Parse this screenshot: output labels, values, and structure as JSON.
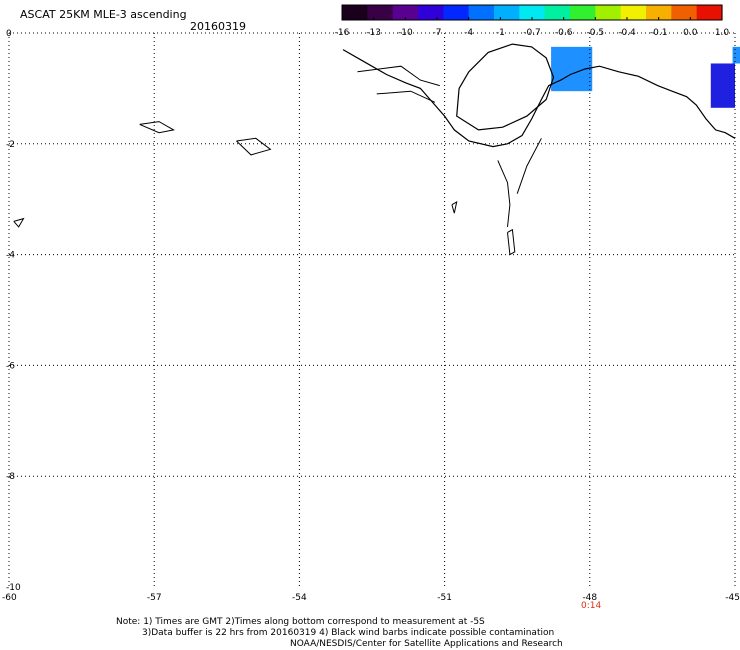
{
  "header": {
    "title": "ASCAT 25KM MLE-3 ascending",
    "date": "20160319"
  },
  "colorbar": {
    "labels": [
      "-16",
      "-13",
      "-10",
      "-7",
      "-4",
      "-1",
      "-0.7",
      "-0.6",
      "-0.5",
      "-0.4",
      "-0.1",
      "0.0",
      "1.0"
    ],
    "colors": [
      "#1a001a",
      "#3a0046",
      "#5a0090",
      "#3000d8",
      "#0028ff",
      "#0070ff",
      "#00b0ff",
      "#00e8f0",
      "#00f0a0",
      "#30f030",
      "#a0f000",
      "#f0f000",
      "#f8b000",
      "#f06000",
      "#e81000"
    ]
  },
  "chart_data": {
    "type": "map",
    "xlim": [
      -60,
      -45
    ],
    "ylim": [
      -10,
      0
    ],
    "x_ticks": [
      "-60",
      "-57",
      "-54",
      "-51",
      "-48",
      "-45"
    ],
    "y_ticks": [
      "0",
      "-2",
      "-4",
      "-6",
      "-8",
      "-10"
    ],
    "grid": true,
    "time_labels": [
      {
        "lon": -48,
        "text": "0:14"
      }
    ],
    "swath_cells": [
      {
        "lon0": -48.8,
        "lon1": -47.95,
        "lat0": -0.25,
        "lat1": -1.05,
        "color": "#1e90ff"
      },
      {
        "lon0": -45.5,
        "lon1": -45.0,
        "lat0": -0.55,
        "lat1": -1.35,
        "color": "#2020e0"
      },
      {
        "lon0": -45.05,
        "lon1": -44.85,
        "lat0": -0.25,
        "lat1": -0.55,
        "color": "#1e90ff"
      }
    ],
    "coastline": [
      [
        -53.1,
        -0.3
      ],
      [
        -52.7,
        -0.5
      ],
      [
        -52.2,
        -0.75
      ],
      [
        -51.8,
        -0.9
      ],
      [
        -51.5,
        -1.0
      ],
      [
        -51.3,
        -1.2
      ],
      [
        -51.0,
        -1.5
      ],
      [
        -50.8,
        -1.75
      ],
      [
        -50.5,
        -1.95
      ],
      [
        -50.0,
        -2.05
      ],
      [
        -49.7,
        -2.0
      ],
      [
        -49.4,
        -1.85
      ],
      [
        -49.2,
        -1.55
      ],
      [
        -49.0,
        -1.2
      ],
      [
        -48.85,
        -0.95
      ],
      [
        -48.6,
        -0.85
      ],
      [
        -48.4,
        -0.75
      ],
      [
        -48.1,
        -0.65
      ],
      [
        -47.8,
        -0.6
      ],
      [
        -47.4,
        -0.7
      ],
      [
        -47.0,
        -0.78
      ],
      [
        -46.6,
        -0.95
      ],
      [
        -46.3,
        -1.05
      ],
      [
        -46.0,
        -1.15
      ],
      [
        -45.8,
        -1.3
      ],
      [
        -45.6,
        -1.55
      ],
      [
        -45.4,
        -1.75
      ],
      [
        -45.2,
        -1.8
      ],
      [
        -45.0,
        -1.9
      ]
    ],
    "marajo_island": [
      [
        -50.5,
        -0.7
      ],
      [
        -50.1,
        -0.35
      ],
      [
        -49.6,
        -0.2
      ],
      [
        -49.2,
        -0.25
      ],
      [
        -48.9,
        -0.45
      ],
      [
        -48.75,
        -0.8
      ],
      [
        -48.9,
        -1.2
      ],
      [
        -49.3,
        -1.5
      ],
      [
        -49.8,
        -1.7
      ],
      [
        -50.3,
        -1.75
      ],
      [
        -50.75,
        -1.5
      ],
      [
        -50.7,
        -1.0
      ],
      [
        -50.5,
        -0.7
      ]
    ],
    "islands": [
      {
        "name": "islet-a",
        "pts": [
          [
            -57.3,
            -1.65
          ],
          [
            -56.9,
            -1.6
          ],
          [
            -56.6,
            -1.75
          ],
          [
            -56.9,
            -1.8
          ],
          [
            -57.3,
            -1.65
          ]
        ]
      },
      {
        "name": "islet-b",
        "pts": [
          [
            -55.3,
            -1.95
          ],
          [
            -54.9,
            -1.9
          ],
          [
            -54.6,
            -2.1
          ],
          [
            -55.0,
            -2.2
          ],
          [
            -55.3,
            -1.95
          ]
        ]
      },
      {
        "name": "islet-c",
        "pts": [
          [
            -59.9,
            -3.4
          ],
          [
            -59.7,
            -3.35
          ],
          [
            -59.8,
            -3.5
          ],
          [
            -59.9,
            -3.4
          ]
        ]
      },
      {
        "name": "islet-d",
        "pts": [
          [
            -50.85,
            -3.1
          ],
          [
            -50.75,
            -3.05
          ],
          [
            -50.8,
            -3.25
          ],
          [
            -50.85,
            -3.1
          ]
        ]
      },
      {
        "name": "islet-e",
        "pts": [
          [
            -49.7,
            -3.6
          ],
          [
            -49.6,
            -3.55
          ],
          [
            -49.55,
            -3.95
          ],
          [
            -49.65,
            -4.0
          ],
          [
            -49.7,
            -3.6
          ]
        ]
      }
    ],
    "rivers": [
      [
        [
          -52.8,
          -0.7
        ],
        [
          -51.9,
          -0.6
        ],
        [
          -51.5,
          -0.85
        ],
        [
          -51.1,
          -0.95
        ]
      ],
      [
        [
          -52.4,
          -1.1
        ],
        [
          -51.7,
          -1.05
        ],
        [
          -51.2,
          -1.25
        ]
      ],
      [
        [
          -49.9,
          -2.3
        ],
        [
          -49.7,
          -2.7
        ],
        [
          -49.65,
          -3.1
        ],
        [
          -49.7,
          -3.5
        ]
      ],
      [
        [
          -49.0,
          -1.9
        ],
        [
          -49.3,
          -2.4
        ],
        [
          -49.5,
          -2.9
        ]
      ]
    ]
  },
  "notes": {
    "line1": "Note: 1) Times are GMT 2)Times along bottom correspond to measurement at -5S",
    "line2": "3)Data buffer is 22 hrs from 20160319 4) Black wind barbs indicate possible contamination",
    "line3": "NOAA/NESDIS/Center for Satellite Applications and Research"
  }
}
